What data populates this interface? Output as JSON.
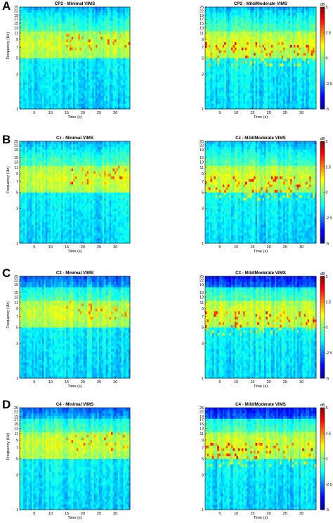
{
  "panel_letters": [
    "A",
    "B",
    "C",
    "D"
  ],
  "colors": {
    "colormap": [
      "#00008f",
      "#0000ff",
      "#0080ff",
      "#00ffff",
      "#80ff80",
      "#ffff00",
      "#ff8000",
      "#ff0000",
      "#800000"
    ],
    "axis": "#000000",
    "background": "#ffffff"
  },
  "chart_data": [
    {
      "type": "heatmap",
      "panel": "A",
      "title": "CP2 - Minimal VIMS",
      "xlabel": "Time (s)",
      "ylabel": "Frequency (Hz)",
      "xticks": [
        5,
        10,
        15,
        20,
        25,
        30
      ],
      "yticks": [
        1,
        3,
        5,
        7,
        9,
        11,
        13,
        15,
        17,
        19,
        22,
        25
      ],
      "xlim": [
        0.5,
        34.5
      ],
      "ylim": [
        1,
        25
      ],
      "yscale": "log",
      "clim": [
        -5,
        5
      ]
    },
    {
      "type": "heatmap",
      "panel": "A",
      "title": "CP2 - Mild/Moderate VIMS",
      "xlabel": "Time (s)",
      "ylabel": "",
      "xticks": [
        5,
        10,
        15,
        20,
        25,
        30
      ],
      "yticks": [
        1,
        3,
        5,
        7,
        9,
        11,
        13,
        15,
        17,
        19,
        22,
        25
      ],
      "xlim": [
        0.5,
        34.5
      ],
      "ylim": [
        1,
        25
      ],
      "yscale": "log",
      "clim": [
        -5,
        5
      ],
      "colorbar": {
        "label": "dB",
        "ticks": [
          "5",
          "2.5",
          "0",
          "-2.5",
          "-5"
        ]
      }
    },
    {
      "type": "heatmap",
      "panel": "B",
      "title": "Cz - Minimal VIMS",
      "xlabel": "Time (s)",
      "ylabel": "Frequency (Hz)",
      "xticks": [
        5,
        10,
        15,
        20,
        25,
        30
      ],
      "yticks": [
        1,
        3,
        5,
        7,
        9,
        11,
        13,
        15,
        19,
        22,
        25
      ],
      "xlim": [
        0.5,
        34.5
      ],
      "ylim": [
        1,
        25
      ],
      "yscale": "log",
      "clim": [
        -5,
        5
      ]
    },
    {
      "type": "heatmap",
      "panel": "B",
      "title": "Cz - Mild/Moderate VIMS",
      "xlabel": "Time (s)",
      "ylabel": "",
      "xticks": [
        5,
        10,
        15,
        20,
        25,
        30
      ],
      "yticks": [
        1,
        3,
        5,
        7,
        9,
        11,
        13,
        15,
        19,
        22,
        25
      ],
      "xlim": [
        0.5,
        34.5
      ],
      "ylim": [
        1,
        25
      ],
      "yscale": "log",
      "clim": [
        -5,
        5
      ],
      "colorbar": {
        "label": "dB",
        "ticks": [
          "5",
          "2.5",
          "0",
          "-2.5",
          "-5"
        ]
      }
    },
    {
      "type": "heatmap",
      "panel": "C",
      "title": "C3 - Minimal VIMS",
      "xlabel": "Time (s)",
      "ylabel": "Frequency (Hz)",
      "xticks": [
        5,
        10,
        15,
        20,
        25,
        30
      ],
      "yticks": [
        1,
        3,
        5,
        7,
        9,
        11,
        13,
        15,
        19,
        22,
        25
      ],
      "xlim": [
        0.5,
        34.5
      ],
      "ylim": [
        1,
        25
      ],
      "yscale": "log",
      "clim": [
        -5,
        5
      ]
    },
    {
      "type": "heatmap",
      "panel": "C",
      "title": "C3 - Mild/Moderate VIMS",
      "xlabel": "Time (s)",
      "ylabel": "",
      "xticks": [
        5,
        10,
        15,
        20,
        25,
        30
      ],
      "yticks": [
        1,
        3,
        5,
        7,
        9,
        11,
        13,
        15,
        19,
        22,
        25
      ],
      "xlim": [
        0.5,
        34.5
      ],
      "ylim": [
        1,
        25
      ],
      "yscale": "log",
      "clim": [
        -5,
        5
      ],
      "colorbar": {
        "label": "dB",
        "ticks": [
          "5",
          "2.5",
          "0",
          "-2.5",
          "-5"
        ]
      }
    },
    {
      "type": "heatmap",
      "panel": "D",
      "title": "C4 - Minimal VIMS",
      "xlabel": "Time (s)",
      "ylabel": "Frequency (Hz)",
      "xticks": [
        5,
        10,
        15,
        20,
        25,
        30
      ],
      "yticks": [
        1,
        3,
        5,
        7,
        9,
        11,
        13,
        15,
        17,
        19,
        22,
        25
      ],
      "xlim": [
        0.5,
        34.5
      ],
      "ylim": [
        1,
        25
      ],
      "yscale": "log",
      "clim": [
        -5,
        5
      ]
    },
    {
      "type": "heatmap",
      "panel": "D",
      "title": "C4 - Mild/Moderate VIMS",
      "xlabel": "Time (s)",
      "ylabel": "",
      "xticks": [
        5,
        10,
        15,
        20,
        25,
        30
      ],
      "yticks": [
        1,
        3,
        5,
        7,
        9,
        11,
        13,
        15,
        17,
        19,
        22,
        25
      ],
      "xlim": [
        0.5,
        34.5
      ],
      "ylim": [
        1,
        25
      ],
      "yscale": "log",
      "clim": [
        -5,
        5
      ],
      "colorbar": {
        "label": "dB",
        "ticks": [
          "5",
          "2.5",
          "0",
          "-2.5",
          "-5"
        ]
      }
    }
  ]
}
